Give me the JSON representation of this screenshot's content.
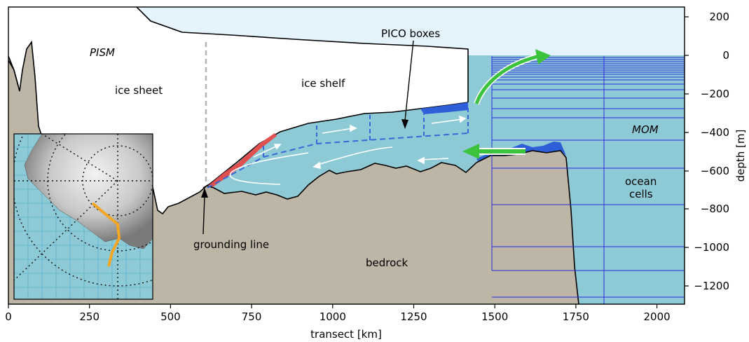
{
  "colors": {
    "atmosphere": "#e4f3fc",
    "ocean": "#8ecad6",
    "bedrock": "#bdb5a6",
    "grid": "#2d2ddc",
    "pico_box": "#3a66d6",
    "melt_red": "#e05050",
    "melt_blue": "#2f5fd8",
    "arrow_green": "#3cc23c",
    "grounding_dash": "#b4b4b4"
  },
  "axes": {
    "xlabel": "transect [km]",
    "ylabel": "depth [m]",
    "x_ticks": [
      "0",
      "250",
      "500",
      "750",
      "1000",
      "1250",
      "1500",
      "1750",
      "2000"
    ],
    "y_ticks": [
      "200",
      "0",
      "−200",
      "−400",
      "−600",
      "−800",
      "−1000",
      "−1200"
    ]
  },
  "labels": {
    "pism": "PISM",
    "ice_sheet": "ice sheet",
    "ice_shelf": "ice shelf",
    "pico_boxes": "PICO boxes",
    "mom": "MOM",
    "ocean_cells_line1": "ocean",
    "ocean_cells_line2": "cells",
    "grounding_line": "grounding line",
    "bedrock": "bedrock"
  },
  "inset": {
    "description_icon": "antarctica-map-inset"
  }
}
